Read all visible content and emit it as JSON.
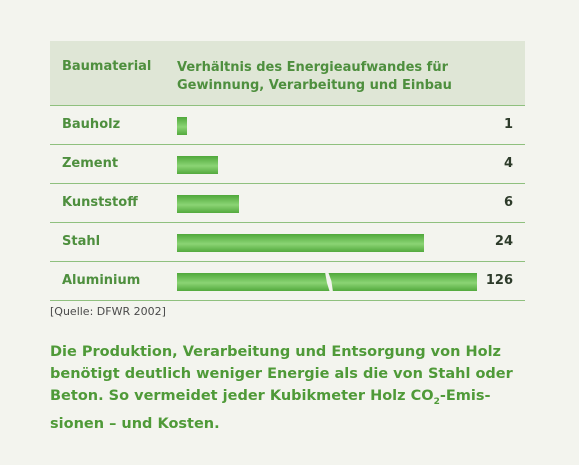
{
  "table": {
    "header_col1": "Baumaterial",
    "header_col2": "Verhältnis des Energieaufwandes für Gewinnung, Verarbeitung und Einbau"
  },
  "chart_data": {
    "type": "bar",
    "orientation": "horizontal",
    "categories": [
      "Bauholz",
      "Zement",
      "Kunststoff",
      "Stahl",
      "Aluminium"
    ],
    "values": [
      1,
      4,
      6,
      24,
      126
    ],
    "value_labels": [
      "1",
      "4",
      "6",
      "24",
      "126"
    ],
    "note": "Aluminium bar shown with a break (truncated axis)"
  },
  "source": "[Quelle: DFWR 2002]",
  "caption": {
    "part1": "Die Produktion, Verarbeitung und Entsorgung von Holz benötigt deutlich weniger Energie als die von Stahl oder Beton. So vermeidet jeder Kubikmeter Holz CO",
    "sub": "2",
    "part2": "-Emis­sionen – und Kosten."
  },
  "colors": {
    "accent": "#4e8f3e",
    "bar": "#6bbf55",
    "header_bg": "#dfe6d6"
  }
}
